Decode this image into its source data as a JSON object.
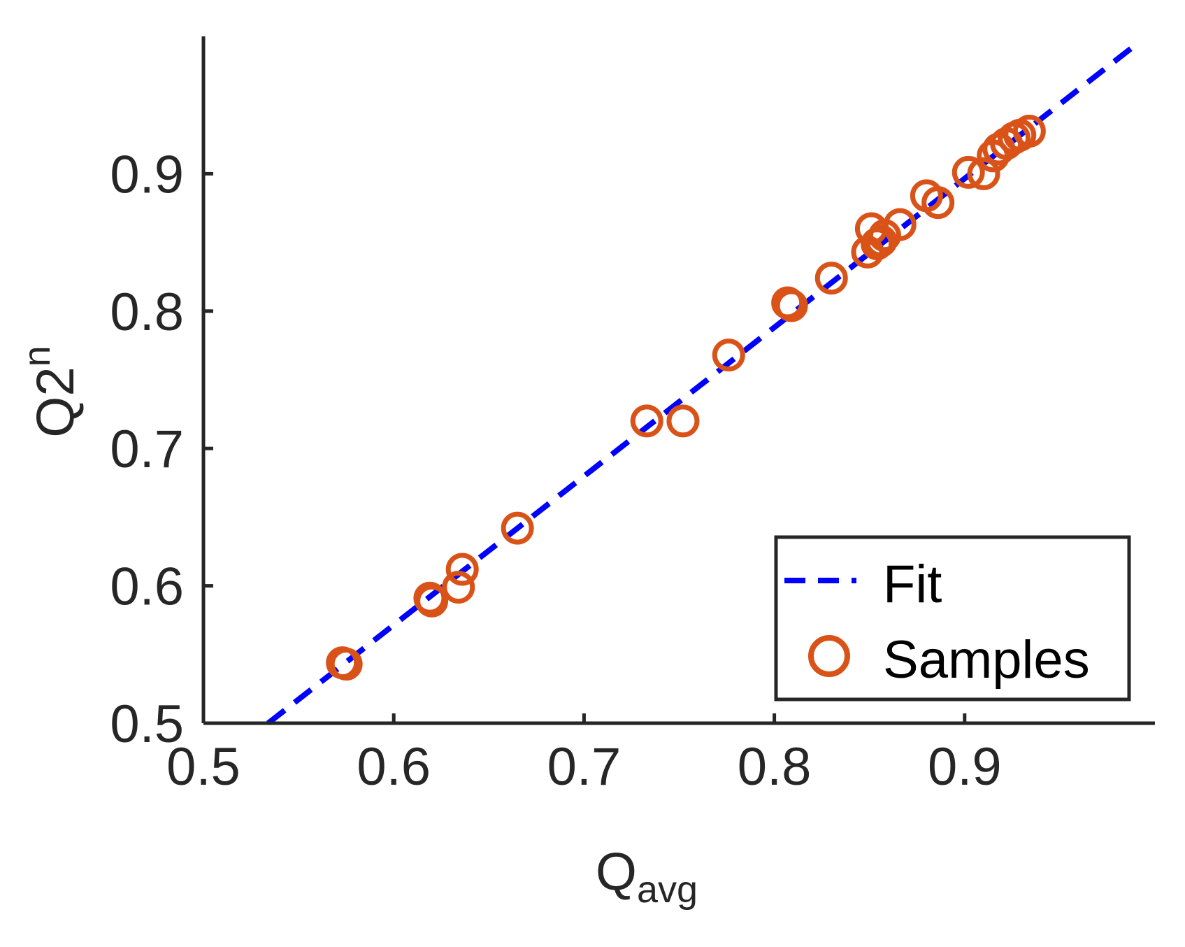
{
  "chart_data": {
    "type": "scatter",
    "title": "",
    "xlabel": "Q",
    "xlabel_sub": "avg",
    "ylabel": "Q2",
    "ylabel_sup": "n",
    "xlim": [
      0.5,
      1.0
    ],
    "ylim": [
      0.5,
      1.0
    ],
    "xticks": [
      0.5,
      0.6,
      0.7,
      0.8,
      0.9
    ],
    "xtick_labels": [
      "0.5",
      "0.6",
      "0.7",
      "0.8",
      "0.9"
    ],
    "yticks": [
      0.5,
      0.6,
      0.7,
      0.8,
      0.9
    ],
    "ytick_labels": [
      "0.5",
      "0.6",
      "0.7",
      "0.8",
      "0.9"
    ],
    "grid": false,
    "legend_position": "bottom-right",
    "colors": {
      "fit": "#0000ff",
      "samples": "#d95319",
      "axis": "#262626"
    },
    "series": [
      {
        "name": "Fit",
        "kind": "line",
        "style": "dashed",
        "x": [
          0.534,
          0.99
        ],
        "y": [
          0.5,
          0.994
        ]
      },
      {
        "name": "Samples",
        "kind": "scatter",
        "marker": "circle-open",
        "x": [
          0.573,
          0.575,
          0.619,
          0.62,
          0.634,
          0.636,
          0.665,
          0.733,
          0.752,
          0.776,
          0.807,
          0.809,
          0.83,
          0.849,
          0.851,
          0.854,
          0.856,
          0.858,
          0.866,
          0.88,
          0.886,
          0.902,
          0.91,
          0.915,
          0.918,
          0.922,
          0.926,
          0.929,
          0.934
        ],
        "y": [
          0.544,
          0.543,
          0.591,
          0.589,
          0.599,
          0.612,
          0.642,
          0.72,
          0.72,
          0.768,
          0.806,
          0.804,
          0.824,
          0.843,
          0.86,
          0.849,
          0.851,
          0.855,
          0.863,
          0.884,
          0.879,
          0.901,
          0.9,
          0.913,
          0.918,
          0.922,
          0.926,
          0.928,
          0.931
        ]
      }
    ]
  }
}
